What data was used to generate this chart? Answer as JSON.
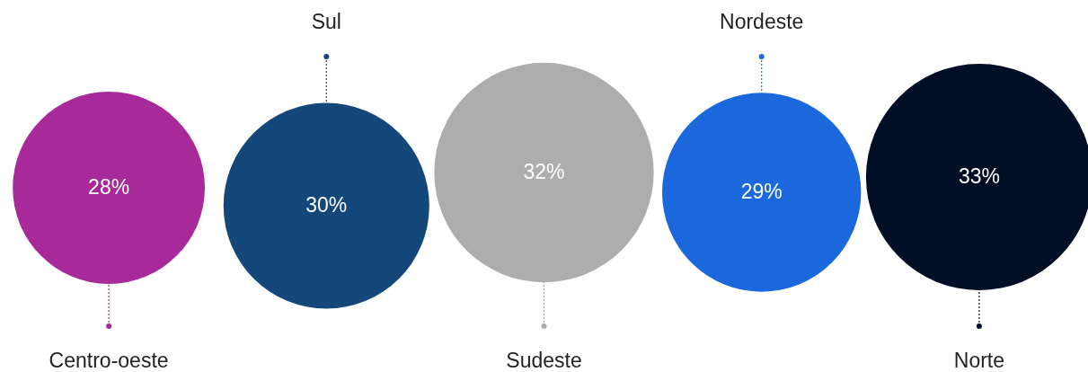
{
  "chart_data": {
    "type": "other",
    "categories": [
      "Centro-oeste",
      "Sul",
      "Sudeste",
      "Nordeste",
      "Norte"
    ],
    "values": [
      28,
      30,
      32,
      29,
      33
    ],
    "value_labels": [
      "28%",
      "30%",
      "32%",
      "29%",
      "33%"
    ],
    "colors": [
      "#a8299a",
      "#14477a",
      "#adadad",
      "#1a68dc",
      "#000e26"
    ]
  }
}
